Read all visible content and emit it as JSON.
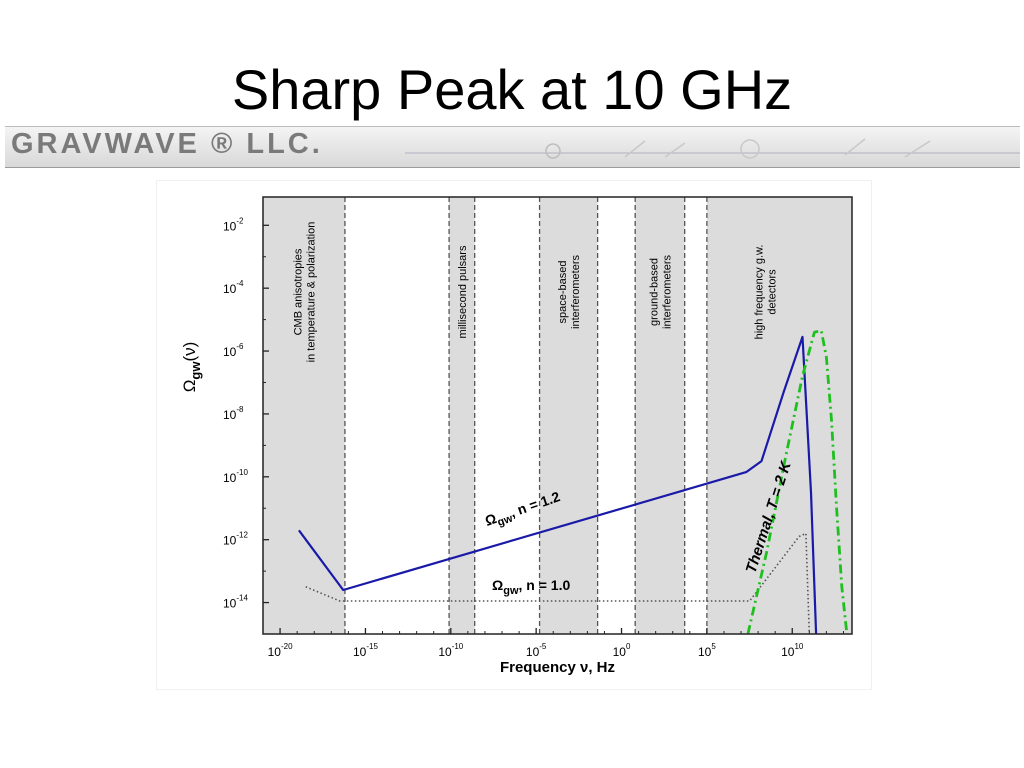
{
  "slide": {
    "title": "Sharp Peak at 10 GHz"
  },
  "banner": {
    "logo_text": "GRAVWAVE ® LLC."
  },
  "chart_data": {
    "type": "line",
    "xlabel": "Frequency ν, Hz",
    "ylabel_main": "Ω",
    "ylabel_sub": "gw",
    "ylabel_arg": "(ν)",
    "x_scale": "log10",
    "y_scale": "log10",
    "xlim_log10": [
      -21,
      13.5
    ],
    "ylim_log10": [
      -15,
      -1.1
    ],
    "x_ticks": [
      {
        "exp": -20,
        "base": "10",
        "sup": "-20"
      },
      {
        "exp": -15,
        "base": "10",
        "sup": "-15"
      },
      {
        "exp": -10,
        "base": "10",
        "sup": "-10"
      },
      {
        "exp": -5,
        "base": "10",
        "sup": "-5"
      },
      {
        "exp": 0,
        "base": "10",
        "sup": "0"
      },
      {
        "exp": 5,
        "base": "10",
        "sup": "5"
      },
      {
        "exp": 10,
        "base": "10",
        "sup": "10"
      }
    ],
    "y_ticks": [
      {
        "exp": -2,
        "base": "10",
        "sup": "-2"
      },
      {
        "exp": -4,
        "base": "10",
        "sup": "-4"
      },
      {
        "exp": -6,
        "base": "10",
        "sup": "-6"
      },
      {
        "exp": -8,
        "base": "10",
        "sup": "-8"
      },
      {
        "exp": -10,
        "base": "10",
        "sup": "-10"
      },
      {
        "exp": -12,
        "base": "10",
        "sup": "-12"
      },
      {
        "exp": -14,
        "base": "10",
        "sup": "-14"
      }
    ],
    "bands": [
      {
        "from": -21,
        "to": -16.2,
        "lines": [
          "CMB anisotropies",
          "in temperature & polarization"
        ]
      },
      {
        "from": -10.1,
        "to": -8.6,
        "lines": [
          "millisecond pulsars"
        ]
      },
      {
        "from": -4.8,
        "to": -1.4,
        "lines": [
          "space-based",
          "interferometers"
        ]
      },
      {
        "from": 0.8,
        "to": 3.7,
        "lines": [
          "ground-based",
          "interferometers"
        ]
      },
      {
        "from": 5.0,
        "to": 13.5,
        "lines": [
          "high frequency g.w.",
          "detectors"
        ]
      }
    ],
    "series": [
      {
        "name": "",
        "label_main": "Ω",
        "label_sub": "gw",
        "label_rest": ", n = 1.2",
        "style": "solid",
        "color": "#1a1aa8",
        "points": [
          [
            -18.9,
            -11.7
          ],
          [
            -16.3,
            -13.6
          ],
          [
            7.3,
            -9.85
          ],
          [
            8.2,
            -9.5
          ],
          [
            9.5,
            -7.3
          ],
          [
            10.6,
            -5.55
          ],
          [
            11.1,
            -10.5
          ],
          [
            11.4,
            -15.0
          ]
        ]
      },
      {
        "name": "",
        "label_main": "Ω",
        "label_sub": "gw",
        "label_rest": ", n = 1.0",
        "style": "dotted",
        "color": "#555555",
        "points": [
          [
            -18.5,
            -13.5
          ],
          [
            -16.5,
            -13.95
          ],
          [
            7.5,
            -13.95
          ],
          [
            10.4,
            -11.9
          ],
          [
            10.8,
            -11.8
          ],
          [
            11.0,
            -15.0
          ]
        ]
      },
      {
        "name": "",
        "label_text": "Thermal, T = 2 K",
        "style": "dashdot",
        "color": "#1fbf1f",
        "points": [
          [
            7.4,
            -15.0
          ],
          [
            8.5,
            -12.4
          ],
          [
            9.6,
            -9.4
          ],
          [
            10.6,
            -6.8
          ],
          [
            11.3,
            -5.4
          ],
          [
            11.7,
            -5.35
          ],
          [
            12.0,
            -6.2
          ],
          [
            12.3,
            -8.2
          ],
          [
            12.6,
            -11.0
          ],
          [
            12.9,
            -13.5
          ],
          [
            13.2,
            -15.0
          ]
        ]
      }
    ],
    "grid": false
  }
}
